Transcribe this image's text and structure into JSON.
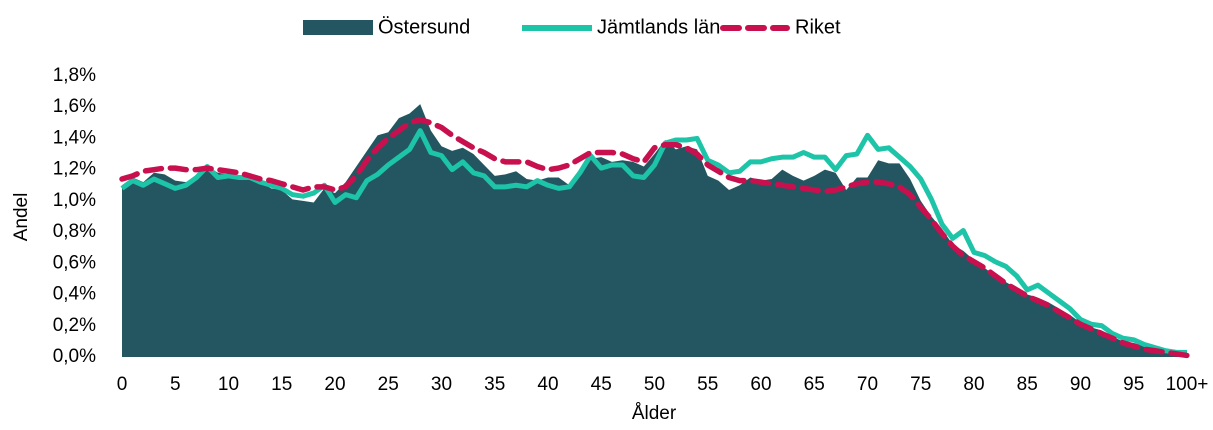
{
  "chart_data": {
    "type": "line",
    "x_label": "Ålder",
    "y_label": "Andel",
    "categories": [
      "0",
      null,
      null,
      null,
      null,
      "5",
      null,
      null,
      null,
      null,
      "10",
      null,
      null,
      null,
      null,
      "15",
      null,
      null,
      null,
      null,
      "20",
      null,
      null,
      null,
      null,
      "25",
      null,
      null,
      null,
      null,
      "30",
      null,
      null,
      null,
      null,
      "35",
      null,
      null,
      null,
      null,
      "40",
      null,
      null,
      null,
      null,
      "45",
      null,
      null,
      null,
      null,
      "50",
      null,
      null,
      null,
      null,
      "55",
      null,
      null,
      null,
      null,
      "60",
      null,
      null,
      null,
      null,
      "65",
      null,
      null,
      null,
      null,
      "70",
      null,
      null,
      null,
      null,
      "75",
      null,
      null,
      null,
      null,
      "80",
      null,
      null,
      null,
      null,
      "85",
      null,
      null,
      null,
      null,
      "90",
      null,
      null,
      null,
      null,
      "95",
      null,
      null,
      null,
      null,
      "100+"
    ],
    "ylim": [
      0,
      1.8
    ],
    "yticks": [
      {
        "value": 0,
        "label": "0,0%"
      },
      {
        "value": 0.2,
        "label": "0,2%"
      },
      {
        "value": 0.4,
        "label": "0,4%"
      },
      {
        "value": 0.6,
        "label": "0,6%"
      },
      {
        "value": 0.8,
        "label": "0,8%"
      },
      {
        "value": 1.0,
        "label": "1,0%"
      },
      {
        "value": 1.2,
        "label": "1,2%"
      },
      {
        "value": 1.4,
        "label": "1,4%"
      },
      {
        "value": 1.6,
        "label": "1,6%"
      },
      {
        "value": 1.8,
        "label": "1,8%"
      }
    ],
    "legend": "top",
    "series": [
      {
        "name": "Östersund",
        "type": "area",
        "color": "#235661",
        "values": [
          1.1,
          1.15,
          1.12,
          1.18,
          1.17,
          1.13,
          1.12,
          1.15,
          1.22,
          1.18,
          1.17,
          1.16,
          1.15,
          1.12,
          1.08,
          1.07,
          1.01,
          1.0,
          0.99,
          1.08,
          1.05,
          1.12,
          1.22,
          1.32,
          1.42,
          1.44,
          1.53,
          1.56,
          1.62,
          1.45,
          1.35,
          1.32,
          1.34,
          1.3,
          1.23,
          1.16,
          1.17,
          1.19,
          1.14,
          1.13,
          1.15,
          1.15,
          1.1,
          1.18,
          1.27,
          1.28,
          1.25,
          1.26,
          1.25,
          1.22,
          1.3,
          1.39,
          1.33,
          1.35,
          1.33,
          1.16,
          1.13,
          1.07,
          1.1,
          1.15,
          1.13,
          1.14,
          1.2,
          1.16,
          1.13,
          1.16,
          1.2,
          1.18,
          1.07,
          1.15,
          1.15,
          1.26,
          1.24,
          1.24,
          1.14,
          1.0,
          0.9,
          0.82,
          0.72,
          0.68,
          0.62,
          0.57,
          0.52,
          0.48,
          0.44,
          0.4,
          0.38,
          0.35,
          0.31,
          0.27,
          0.22,
          0.19,
          0.17,
          0.13,
          0.1,
          0.09,
          0.07,
          0.05,
          0.03,
          0.02,
          0.02
        ]
      },
      {
        "name": "Jämtlands län",
        "type": "line",
        "color": "#1dc4a7",
        "values": [
          1.08,
          1.13,
          1.1,
          1.14,
          1.11,
          1.08,
          1.1,
          1.15,
          1.22,
          1.15,
          1.16,
          1.15,
          1.15,
          1.12,
          1.1,
          1.08,
          1.04,
          1.03,
          1.05,
          1.1,
          0.99,
          1.04,
          1.02,
          1.13,
          1.17,
          1.23,
          1.28,
          1.33,
          1.45,
          1.31,
          1.29,
          1.2,
          1.25,
          1.18,
          1.16,
          1.09,
          1.09,
          1.1,
          1.09,
          1.13,
          1.1,
          1.08,
          1.09,
          1.18,
          1.29,
          1.21,
          1.23,
          1.23,
          1.16,
          1.15,
          1.23,
          1.37,
          1.39,
          1.39,
          1.4,
          1.26,
          1.23,
          1.18,
          1.19,
          1.25,
          1.25,
          1.27,
          1.28,
          1.28,
          1.31,
          1.28,
          1.28,
          1.2,
          1.29,
          1.3,
          1.42,
          1.33,
          1.34,
          1.28,
          1.22,
          1.14,
          1.01,
          0.85,
          0.76,
          0.81,
          0.67,
          0.65,
          0.61,
          0.58,
          0.52,
          0.43,
          0.46,
          0.41,
          0.36,
          0.31,
          0.24,
          0.21,
          0.2,
          0.15,
          0.12,
          0.11,
          0.08,
          0.06,
          0.04,
          0.03,
          0.03
        ]
      },
      {
        "name": "Riket",
        "type": "line",
        "dashed": true,
        "color": "#c8104f",
        "values": [
          1.14,
          1.16,
          1.19,
          1.2,
          1.21,
          1.21,
          1.2,
          1.2,
          1.21,
          1.2,
          1.19,
          1.18,
          1.16,
          1.14,
          1.13,
          1.11,
          1.09,
          1.07,
          1.09,
          1.09,
          1.07,
          1.09,
          1.16,
          1.26,
          1.34,
          1.4,
          1.45,
          1.5,
          1.52,
          1.5,
          1.47,
          1.42,
          1.38,
          1.34,
          1.31,
          1.27,
          1.25,
          1.25,
          1.25,
          1.22,
          1.2,
          1.21,
          1.23,
          1.27,
          1.31,
          1.31,
          1.31,
          1.3,
          1.27,
          1.25,
          1.34,
          1.36,
          1.36,
          1.34,
          1.3,
          1.23,
          1.19,
          1.15,
          1.13,
          1.13,
          1.12,
          1.11,
          1.1,
          1.09,
          1.08,
          1.07,
          1.06,
          1.07,
          1.09,
          1.11,
          1.12,
          1.12,
          1.11,
          1.09,
          1.04,
          0.96,
          0.88,
          0.79,
          0.71,
          0.65,
          0.61,
          0.57,
          0.52,
          0.47,
          0.43,
          0.39,
          0.36,
          0.33,
          0.29,
          0.25,
          0.21,
          0.18,
          0.15,
          0.12,
          0.09,
          0.07,
          0.05,
          0.04,
          0.03,
          0.02,
          0.01
        ]
      }
    ]
  }
}
